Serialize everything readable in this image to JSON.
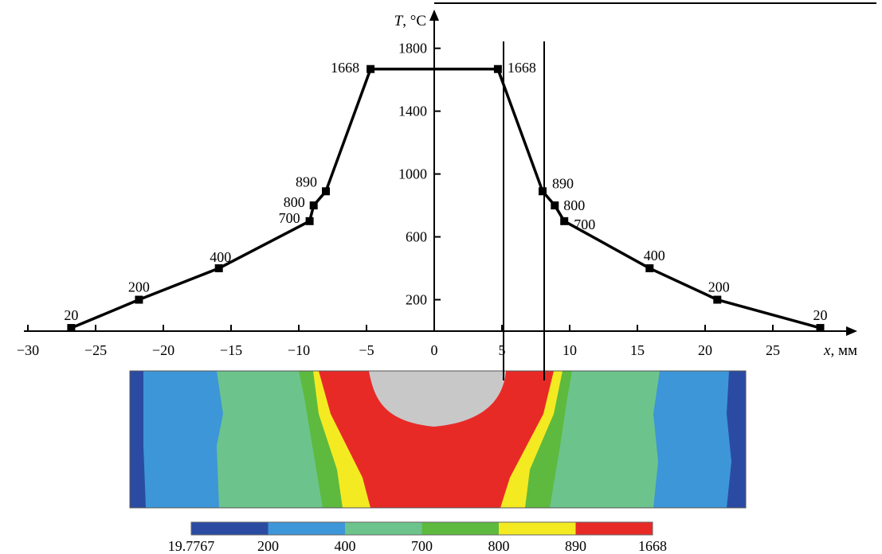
{
  "chart_data": {
    "type": "line",
    "title": "",
    "xlabel_symbol": "x",
    "xlabel_unit": ", мм",
    "ylabel_symbol": "T",
    "ylabel_unit": ", °C",
    "xlim": [
      -30,
      30
    ],
    "ylim": [
      0,
      1900
    ],
    "xticks": [
      -30,
      -25,
      -20,
      -15,
      -10,
      -5,
      0,
      5,
      10,
      15,
      20,
      25
    ],
    "xtick_labels": [
      "−30",
      "−25",
      "−20",
      "−15",
      "−10",
      "−5",
      "0",
      "5",
      "10",
      "15",
      "20",
      "25"
    ],
    "yticks": [
      200,
      600,
      1000,
      1400,
      1800
    ],
    "ytick_labels": [
      "200",
      "600",
      "1000",
      "1400",
      "1800"
    ],
    "grid": false,
    "series": [
      {
        "x": [
          -26.8,
          -21.8,
          -15.9,
          -9.2,
          -8.9,
          -8.0,
          -4.7,
          4.7,
          8.0,
          8.9,
          9.6,
          15.9,
          20.9,
          28.5
        ],
        "y": [
          20,
          200,
          400,
          700,
          800,
          890,
          1668,
          1668,
          890,
          800,
          700,
          400,
          200,
          20
        ],
        "point_labels": [
          "20",
          "200",
          "400",
          "700",
          "800",
          "890",
          "1668",
          "1668",
          "890",
          "800",
          "700",
          "400",
          "200",
          "20"
        ]
      }
    ],
    "vertical_lines_x": [
      5.0,
      8.0
    ],
    "colorbar": {
      "colors": [
        "#2b4ba3",
        "#3d96d8",
        "#6cc48c",
        "#5dba3e",
        "#f4ea22",
        "#e82a27"
      ],
      "tick_labels": [
        "19.7767",
        "200",
        "400",
        "700",
        "800",
        "890",
        "1668"
      ]
    },
    "contour_colors": {
      "edge": "#2b4ba3",
      "cold": "#3d96d8",
      "mid": "#6cc48c",
      "warm": "#5dba3e",
      "hot": "#f4ea22",
      "melt": "#e82a27",
      "pool": "#c8c8c8"
    }
  }
}
